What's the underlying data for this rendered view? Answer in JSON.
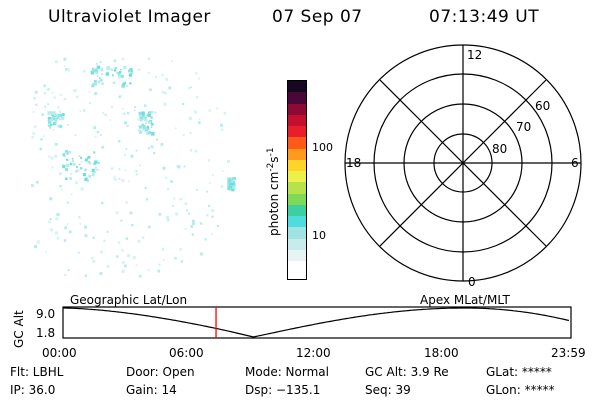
{
  "header": {
    "title": "Ultraviolet Imager",
    "date": "07 Sep 07",
    "time": "07:13:49 UT"
  },
  "colorbar": {
    "unit_label": "photon cm",
    "unit_sup1": "-2",
    "unit_mid": "s",
    "unit_sup2": "-1",
    "tick_100": "100",
    "tick_10": "10",
    "colors": [
      "#ffffff",
      "#e6f4f4",
      "#c8ecec",
      "#9fe3e3",
      "#4fdcdc",
      "#3cd0a0",
      "#7ed957",
      "#b7e34a",
      "#eef04a",
      "#ffd42a",
      "#ff9a1a",
      "#ff5a1a",
      "#e81f2a",
      "#c4102e",
      "#8e0a36",
      "#4a0838",
      "#150820"
    ]
  },
  "polar": {
    "labels": {
      "mlt12": "12",
      "mlt18": "18",
      "mlt6": "6",
      "mlt0": "0",
      "lat60": "60",
      "lat70": "70",
      "lat80": "80"
    }
  },
  "timeline": {
    "left_title": "Geographic Lat/Lon",
    "right_title": "Apex MLat/MLT",
    "axis_label": "GC Alt",
    "y_top": "9.0",
    "y_bottom": "1.8",
    "x_ticks": [
      "00:00",
      "06:00",
      "12:00",
      "18:00",
      "23:59"
    ],
    "current_time_hours": 7.23,
    "marker_color": "#ff0000"
  },
  "status": {
    "flt": "Flt: LBHL",
    "ip": "IP: 36.0",
    "door": "Door: Open",
    "gain": "Gain: 14",
    "mode": "Mode: Normal",
    "dsp": "Dsp: −135.1",
    "gcalt": "GC Alt: 3.9 Re",
    "seq": "Seq: 39",
    "glat": "GLat: *****",
    "glon": "GLon: *****"
  }
}
